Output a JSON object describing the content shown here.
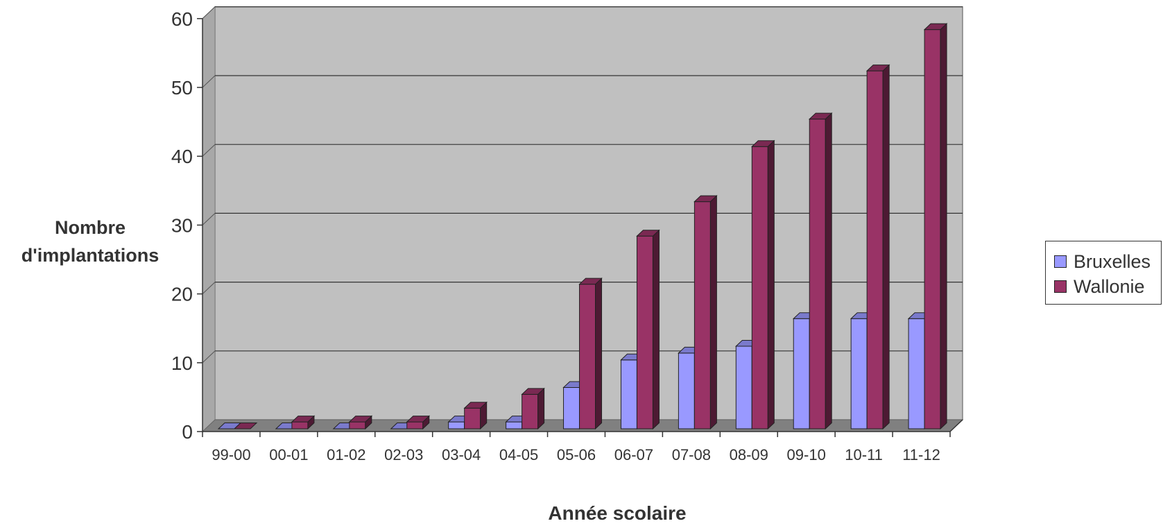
{
  "chart_data": {
    "type": "bar",
    "categories": [
      "99-00",
      "00-01",
      "01-02",
      "02-03",
      "03-04",
      "04-05",
      "05-06",
      "06-07",
      "07-08",
      "08-09",
      "09-10",
      "10-11",
      "11-12"
    ],
    "series": [
      {
        "name": "Bruxelles",
        "color": "#9999ff",
        "values": [
          0,
          0,
          0,
          0,
          1,
          1,
          6,
          10,
          11,
          12,
          16,
          16,
          16
        ]
      },
      {
        "name": "Wallonie",
        "color": "#993366",
        "values": [
          0,
          1,
          1,
          1,
          3,
          5,
          21,
          28,
          33,
          41,
          45,
          52,
          58
        ]
      }
    ],
    "xlabel": "Année scolaire",
    "ylabel": "Nombre d'implantations",
    "ylim": [
      0,
      60
    ],
    "yticks": [
      "0",
      "10",
      "20",
      "30",
      "40",
      "50",
      "60"
    ],
    "grid": true,
    "three_d": true,
    "legend_position": "right",
    "wall_color": "#c0c0c0",
    "floor_color": "#808080"
  }
}
